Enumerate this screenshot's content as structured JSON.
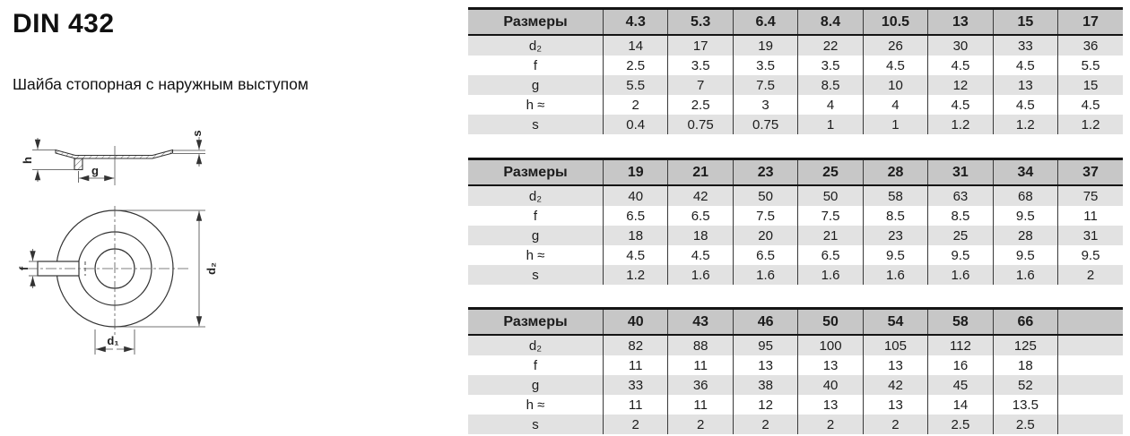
{
  "page": {
    "title": "DIN 432",
    "subtitle": "Шайба стопорная с наружным выступом"
  },
  "drawing": {
    "labels": {
      "h": "h",
      "g": "g",
      "s": "s",
      "f": "f",
      "d1": "d₁",
      "d2": "d₂"
    }
  },
  "tables": [
    {
      "size_label": "Размеры",
      "sizes": [
        "4.3",
        "5.3",
        "6.4",
        "8.4",
        "10.5",
        "13",
        "15",
        "17"
      ],
      "rows": [
        {
          "label": "d₂",
          "values": [
            "14",
            "17",
            "19",
            "22",
            "26",
            "30",
            "33",
            "36"
          ]
        },
        {
          "label": "f",
          "values": [
            "2.5",
            "3.5",
            "3.5",
            "3.5",
            "4.5",
            "4.5",
            "4.5",
            "5.5"
          ]
        },
        {
          "label": "g",
          "values": [
            "5.5",
            "7",
            "7.5",
            "8.5",
            "10",
            "12",
            "13",
            "15"
          ]
        },
        {
          "label": "h ≈",
          "values": [
            "2",
            "2.5",
            "3",
            "4",
            "4",
            "4.5",
            "4.5",
            "4.5"
          ]
        },
        {
          "label": "s",
          "values": [
            "0.4",
            "0.75",
            "0.75",
            "1",
            "1",
            "1.2",
            "1.2",
            "1.2"
          ]
        }
      ]
    },
    {
      "size_label": "Размеры",
      "sizes": [
        "19",
        "21",
        "23",
        "25",
        "28",
        "31",
        "34",
        "37"
      ],
      "rows": [
        {
          "label": "d₂",
          "values": [
            "40",
            "42",
            "50",
            "50",
            "58",
            "63",
            "68",
            "75"
          ]
        },
        {
          "label": "f",
          "values": [
            "6.5",
            "6.5",
            "7.5",
            "7.5",
            "8.5",
            "8.5",
            "9.5",
            "11"
          ]
        },
        {
          "label": "g",
          "values": [
            "18",
            "18",
            "20",
            "21",
            "23",
            "25",
            "28",
            "31"
          ]
        },
        {
          "label": "h ≈",
          "values": [
            "4.5",
            "4.5",
            "6.5",
            "6.5",
            "9.5",
            "9.5",
            "9.5",
            "9.5"
          ]
        },
        {
          "label": "s",
          "values": [
            "1.2",
            "1.6",
            "1.6",
            "1.6",
            "1.6",
            "1.6",
            "1.6",
            "2"
          ]
        }
      ]
    },
    {
      "size_label": "Размеры",
      "sizes": [
        "40",
        "43",
        "46",
        "50",
        "54",
        "58",
        "66",
        ""
      ],
      "rows": [
        {
          "label": "d₂",
          "values": [
            "82",
            "88",
            "95",
            "100",
            "105",
            "112",
            "125",
            ""
          ]
        },
        {
          "label": "f",
          "values": [
            "11",
            "11",
            "13",
            "13",
            "13",
            "16",
            "18",
            ""
          ]
        },
        {
          "label": "g",
          "values": [
            "33",
            "36",
            "38",
            "40",
            "42",
            "45",
            "52",
            ""
          ]
        },
        {
          "label": "h ≈",
          "values": [
            "11",
            "11",
            "12",
            "13",
            "13",
            "14",
            "13.5",
            ""
          ]
        },
        {
          "label": "s",
          "values": [
            "2",
            "2",
            "2",
            "2",
            "2",
            "2.5",
            "2.5",
            ""
          ]
        }
      ]
    }
  ],
  "colors": {
    "header_bg": "#c7c7c7",
    "row_alt_bg": "#e2e2e2",
    "row_bg": "#ffffff",
    "border": "#141414",
    "text": "#1c1c1c"
  }
}
